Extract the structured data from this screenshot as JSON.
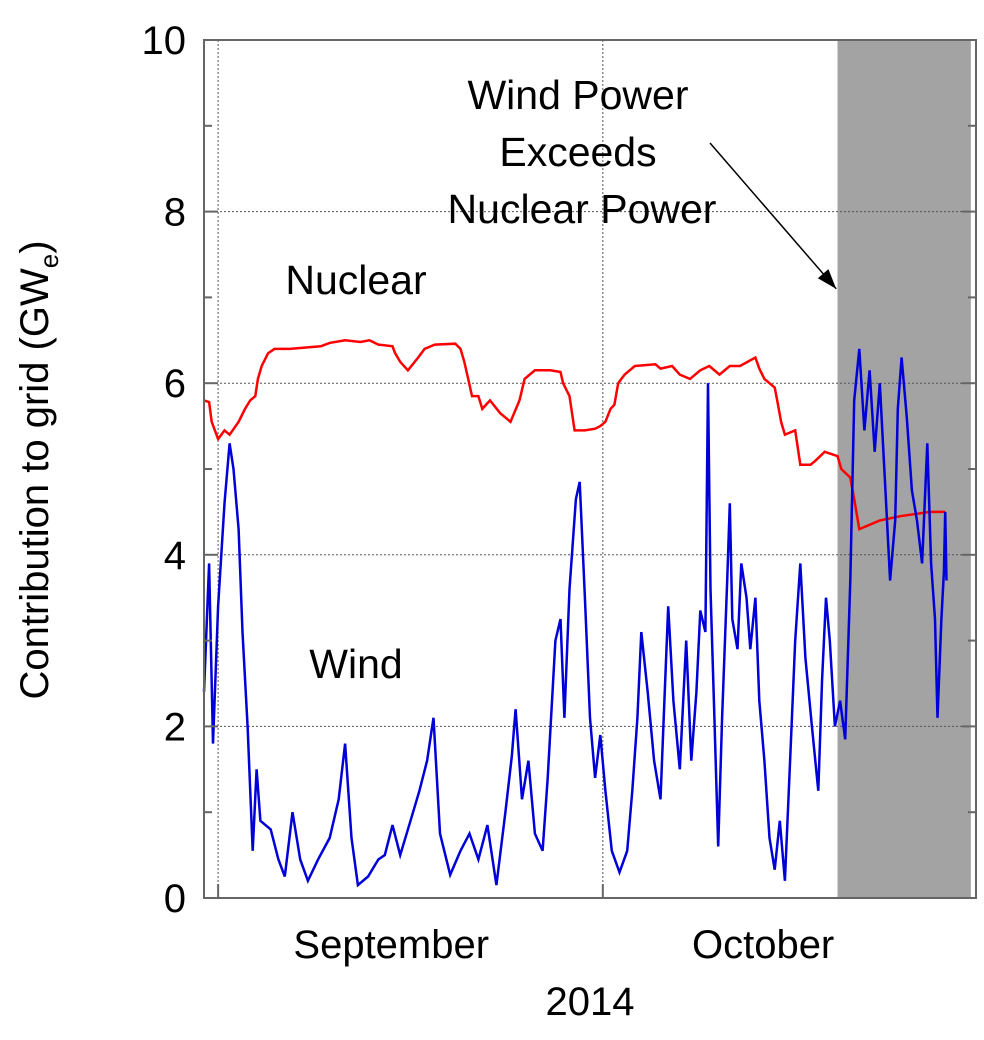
{
  "chart_data": {
    "type": "line",
    "title": "",
    "ylabel": "Contribution to grid (GW",
    "ylabel_subscript": "e",
    "ylabel_close": ")",
    "xlabel": "2014",
    "x_unit": "days since September 1, 2014",
    "xlim": [
      -1.1,
      59.1
    ],
    "ylim": [
      0,
      10
    ],
    "yticks": [
      0,
      2,
      4,
      6,
      8,
      10
    ],
    "ytick_labels": [
      "0",
      "2",
      "4",
      "6",
      "8",
      "10"
    ],
    "xticks": [
      0,
      30
    ],
    "month_labels": [
      {
        "label": "September",
        "center_day": 13.5
      },
      {
        "label": "October",
        "center_day": 42.5
      }
    ],
    "grid": true,
    "highlight_region": {
      "from_day": 48.3,
      "to_day": 58.7,
      "color": "#a3a3a3"
    },
    "annotation": {
      "lines": [
        "Wind Power",
        "Exceeds",
        "Nuclear Power"
      ],
      "arrow_to_day": 48.2,
      "arrow_to_value": 7.1
    },
    "series": [
      {
        "name": "Nuclear",
        "color": "#ff0000",
        "label_color": "#ff0000",
        "points": [
          [
            -1.1,
            5.8
          ],
          [
            -0.7,
            5.78
          ],
          [
            -0.5,
            5.55
          ],
          [
            0,
            5.35
          ],
          [
            0.5,
            5.45
          ],
          [
            0.9,
            5.4
          ],
          [
            1.6,
            5.55
          ],
          [
            2.1,
            5.7
          ],
          [
            2.5,
            5.8
          ],
          [
            2.9,
            5.85
          ],
          [
            3.1,
            6.05
          ],
          [
            3.4,
            6.2
          ],
          [
            3.9,
            6.35
          ],
          [
            4.4,
            6.4
          ],
          [
            5.6,
            6.4
          ],
          [
            8.0,
            6.43
          ],
          [
            8.7,
            6.47
          ],
          [
            9.9,
            6.5
          ],
          [
            11.1,
            6.48
          ],
          [
            11.8,
            6.5
          ],
          [
            12.5,
            6.45
          ],
          [
            13.6,
            6.43
          ],
          [
            13.8,
            6.35
          ],
          [
            14.2,
            6.25
          ],
          [
            14.8,
            6.15
          ],
          [
            15.6,
            6.3
          ],
          [
            16.1,
            6.4
          ],
          [
            16.9,
            6.45
          ],
          [
            18.5,
            6.46
          ],
          [
            18.9,
            6.4
          ],
          [
            19.2,
            6.25
          ],
          [
            19.5,
            6.05
          ],
          [
            19.8,
            5.85
          ],
          [
            20.3,
            5.85
          ],
          [
            20.6,
            5.7
          ],
          [
            21.2,
            5.8
          ],
          [
            22.0,
            5.65
          ],
          [
            22.8,
            5.55
          ],
          [
            23.5,
            5.8
          ],
          [
            23.9,
            6.05
          ],
          [
            24.7,
            6.15
          ],
          [
            25.9,
            6.15
          ],
          [
            26.7,
            6.13
          ],
          [
            26.9,
            6.0
          ],
          [
            27.4,
            5.85
          ],
          [
            27.8,
            5.45
          ],
          [
            28.6,
            5.45
          ],
          [
            29.4,
            5.47
          ],
          [
            29.8,
            5.5
          ],
          [
            30.2,
            5.55
          ],
          [
            30.6,
            5.7
          ],
          [
            30.9,
            5.75
          ],
          [
            31.2,
            6.0
          ],
          [
            31.7,
            6.1
          ],
          [
            32.5,
            6.2
          ],
          [
            34.1,
            6.22
          ],
          [
            34.5,
            6.17
          ],
          [
            35.4,
            6.2
          ],
          [
            36.0,
            6.1
          ],
          [
            36.8,
            6.05
          ],
          [
            37.6,
            6.15
          ],
          [
            38.3,
            6.2
          ],
          [
            39.1,
            6.1
          ],
          [
            39.9,
            6.2
          ],
          [
            40.7,
            6.2
          ],
          [
            41.9,
            6.3
          ],
          [
            42.2,
            6.17
          ],
          [
            42.6,
            6.05
          ],
          [
            43.0,
            6.0
          ],
          [
            43.4,
            5.95
          ],
          [
            43.6,
            5.8
          ],
          [
            43.9,
            5.55
          ],
          [
            44.2,
            5.4
          ],
          [
            45.0,
            5.45
          ],
          [
            45.4,
            5.05
          ],
          [
            46.2,
            5.05
          ],
          [
            46.6,
            5.1
          ],
          [
            47.3,
            5.2
          ],
          [
            48.3,
            5.15
          ],
          [
            48.6,
            5.0
          ],
          [
            49.3,
            4.9
          ],
          [
            49.6,
            4.65
          ],
          [
            50.0,
            4.3
          ],
          [
            50.8,
            4.35
          ],
          [
            51.6,
            4.4
          ],
          [
            53.2,
            4.45
          ],
          [
            55.5,
            4.5
          ],
          [
            56.7,
            4.5
          ]
        ]
      },
      {
        "name": "Wind",
        "color": "#0000d8",
        "label_color": "#0000d8",
        "points": [
          [
            -1.1,
            2.4
          ],
          [
            -0.7,
            3.9
          ],
          [
            -0.4,
            1.8
          ],
          [
            0,
            3.4
          ],
          [
            0.5,
            4.6
          ],
          [
            0.9,
            5.3
          ],
          [
            1.2,
            5.0
          ],
          [
            1.6,
            4.3
          ],
          [
            1.9,
            3.1
          ],
          [
            2.3,
            2.0
          ],
          [
            2.7,
            0.55
          ],
          [
            3.0,
            1.5
          ],
          [
            3.3,
            0.9
          ],
          [
            4.1,
            0.8
          ],
          [
            4.7,
            0.45
          ],
          [
            5.2,
            0.25
          ],
          [
            5.8,
            1.0
          ],
          [
            6.4,
            0.45
          ],
          [
            7.0,
            0.2
          ],
          [
            7.8,
            0.45
          ],
          [
            8.7,
            0.7
          ],
          [
            9.4,
            1.15
          ],
          [
            9.9,
            1.8
          ],
          [
            10.4,
            0.7
          ],
          [
            10.9,
            0.15
          ],
          [
            11.7,
            0.25
          ],
          [
            12.5,
            0.45
          ],
          [
            13.0,
            0.5
          ],
          [
            13.6,
            0.85
          ],
          [
            14.2,
            0.5
          ],
          [
            15.0,
            0.9
          ],
          [
            15.7,
            1.25
          ],
          [
            16.3,
            1.6
          ],
          [
            16.8,
            2.1
          ],
          [
            17.3,
            0.75
          ],
          [
            18.1,
            0.27
          ],
          [
            18.9,
            0.55
          ],
          [
            19.6,
            0.75
          ],
          [
            20.3,
            0.45
          ],
          [
            21.0,
            0.85
          ],
          [
            21.7,
            0.15
          ],
          [
            22.4,
            1.0
          ],
          [
            22.9,
            1.65
          ],
          [
            23.2,
            2.2
          ],
          [
            23.7,
            1.15
          ],
          [
            24.2,
            1.6
          ],
          [
            24.7,
            0.75
          ],
          [
            25.3,
            0.55
          ],
          [
            25.7,
            1.4
          ],
          [
            26.3,
            3.0
          ],
          [
            26.7,
            3.25
          ],
          [
            27.0,
            2.1
          ],
          [
            27.4,
            3.6
          ],
          [
            27.9,
            4.65
          ],
          [
            28.2,
            4.85
          ],
          [
            28.6,
            3.5
          ],
          [
            29.0,
            2.1
          ],
          [
            29.4,
            1.4
          ],
          [
            29.8,
            1.9
          ],
          [
            30.2,
            1.25
          ],
          [
            30.7,
            0.55
          ],
          [
            31.3,
            0.3
          ],
          [
            31.9,
            0.55
          ],
          [
            32.3,
            1.25
          ],
          [
            32.7,
            2.1
          ],
          [
            33.0,
            3.1
          ],
          [
            33.5,
            2.4
          ],
          [
            34.0,
            1.6
          ],
          [
            34.5,
            1.15
          ],
          [
            34.8,
            2.3
          ],
          [
            35.1,
            3.4
          ],
          [
            35.5,
            2.3
          ],
          [
            36.0,
            1.5
          ],
          [
            36.5,
            3.0
          ],
          [
            36.9,
            1.6
          ],
          [
            37.3,
            2.4
          ],
          [
            37.6,
            3.35
          ],
          [
            38.0,
            3.1
          ],
          [
            38.2,
            6.0
          ],
          [
            38.4,
            3.6
          ],
          [
            38.7,
            2.1
          ],
          [
            39.0,
            0.6
          ],
          [
            39.3,
            2.1
          ],
          [
            39.7,
            3.7
          ],
          [
            39.9,
            4.6
          ],
          [
            40.1,
            3.25
          ],
          [
            40.5,
            2.9
          ],
          [
            40.8,
            3.9
          ],
          [
            41.2,
            3.5
          ],
          [
            41.5,
            2.9
          ],
          [
            41.9,
            3.5
          ],
          [
            42.2,
            2.3
          ],
          [
            42.6,
            1.6
          ],
          [
            43.0,
            0.7
          ],
          [
            43.4,
            0.33
          ],
          [
            43.8,
            0.9
          ],
          [
            44.2,
            0.2
          ],
          [
            44.6,
            1.6
          ],
          [
            45.0,
            3.0
          ],
          [
            45.4,
            3.9
          ],
          [
            45.8,
            2.8
          ],
          [
            46.3,
            2.0
          ],
          [
            46.8,
            1.25
          ],
          [
            47.1,
            2.55
          ],
          [
            47.4,
            3.5
          ],
          [
            47.7,
            3.0
          ],
          [
            48.1,
            2.0
          ],
          [
            48.5,
            2.3
          ],
          [
            48.9,
            1.85
          ],
          [
            49.3,
            3.7
          ],
          [
            49.6,
            5.8
          ],
          [
            50.0,
            6.4
          ],
          [
            50.4,
            5.45
          ],
          [
            50.8,
            6.15
          ],
          [
            51.2,
            5.2
          ],
          [
            51.6,
            6.0
          ],
          [
            52.0,
            4.85
          ],
          [
            52.4,
            3.7
          ],
          [
            52.8,
            4.4
          ],
          [
            53.0,
            5.7
          ],
          [
            53.3,
            6.3
          ],
          [
            53.7,
            5.6
          ],
          [
            54.1,
            4.75
          ],
          [
            54.5,
            4.4
          ],
          [
            54.9,
            3.9
          ],
          [
            55.3,
            5.3
          ],
          [
            55.6,
            3.9
          ],
          [
            55.9,
            3.25
          ],
          [
            56.1,
            2.1
          ],
          [
            56.4,
            3.25
          ],
          [
            56.6,
            3.8
          ],
          [
            56.7,
            4.5
          ],
          [
            56.8,
            3.7
          ]
        ]
      }
    ]
  }
}
